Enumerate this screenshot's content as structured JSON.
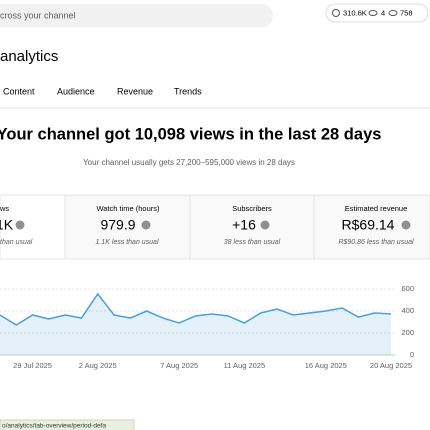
{
  "header": {
    "search_text": "cross your channel",
    "stats": [
      "310.6K",
      "4",
      "758"
    ]
  },
  "page_title": "analytics",
  "tabs": [
    "Content",
    "Audience",
    "Revenue",
    "Trends"
  ],
  "summary": {
    "headline": "Your channel got 10,098 views in the last 28 days",
    "subline": "Your channel usually gets 27,200–595,000 views in 28 days"
  },
  "cards": [
    {
      "title": "ws",
      "value": "1K",
      "note": "than usual"
    },
    {
      "title": "Watch time (hours)",
      "value": "979.9",
      "note": "1.1K less than usual"
    },
    {
      "title": "Subscribers",
      "value": "+16",
      "note": "38 less than usual"
    },
    {
      "title": "Estimated revenue",
      "value": "R$69.14",
      "note": "R$90.86 less than usual"
    }
  ],
  "chart_data": {
    "type": "area",
    "categories": [
      null,
      null,
      "29 Jul 2025",
      null,
      null,
      null,
      "2 Aug 2025",
      null,
      null,
      null,
      null,
      "7 Aug 2025",
      null,
      null,
      null,
      "11 Aug 2025",
      null,
      null,
      null,
      null,
      "16 Aug 2025",
      null,
      null,
      null,
      "20 Aug 2025"
    ],
    "values": [
      364,
      273,
      364,
      327,
      364,
      336,
      555,
      364,
      336,
      400,
      336,
      291,
      355,
      373,
      355,
      291,
      382,
      418,
      364,
      382,
      400,
      427,
      345,
      382,
      373
    ],
    "color": "#4a9fd8",
    "ylim": [
      0,
      600
    ],
    "yticks": [
      0,
      200,
      400,
      600
    ],
    "grid": true
  },
  "status_url": "o/analytics/tab-overview/period-defa"
}
